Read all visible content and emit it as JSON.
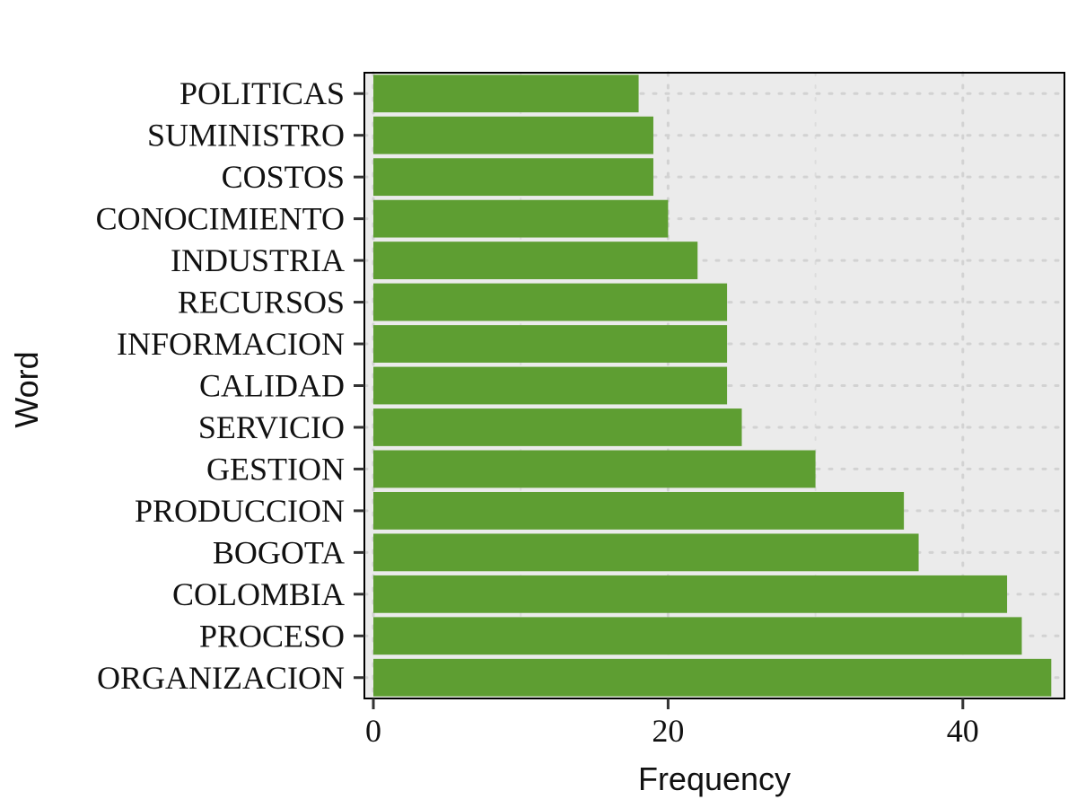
{
  "chart_data": {
    "type": "bar",
    "orientation": "horizontal",
    "xlabel": "Frequency",
    "ylabel": "Word",
    "xlim": [
      0,
      46
    ],
    "x_ticks": [
      0,
      20,
      40
    ],
    "categories": [
      "POLITICAS",
      "SUMINISTRO",
      "COSTOS",
      "CONOCIMIENTO",
      "INDUSTRIA",
      "RECURSOS",
      "INFORMACION",
      "CALIDAD",
      "SERVICIO",
      "GESTION",
      "PRODUCCION",
      "BOGOTA",
      "COLOMBIA",
      "PROCESO",
      "ORGANIZACION"
    ],
    "values": [
      18,
      19,
      19,
      20,
      22,
      24,
      24,
      24,
      25,
      30,
      36,
      37,
      43,
      44,
      46
    ],
    "bar_color": "#5e9e32",
    "panel_background": "#ebebeb",
    "grid": true
  }
}
